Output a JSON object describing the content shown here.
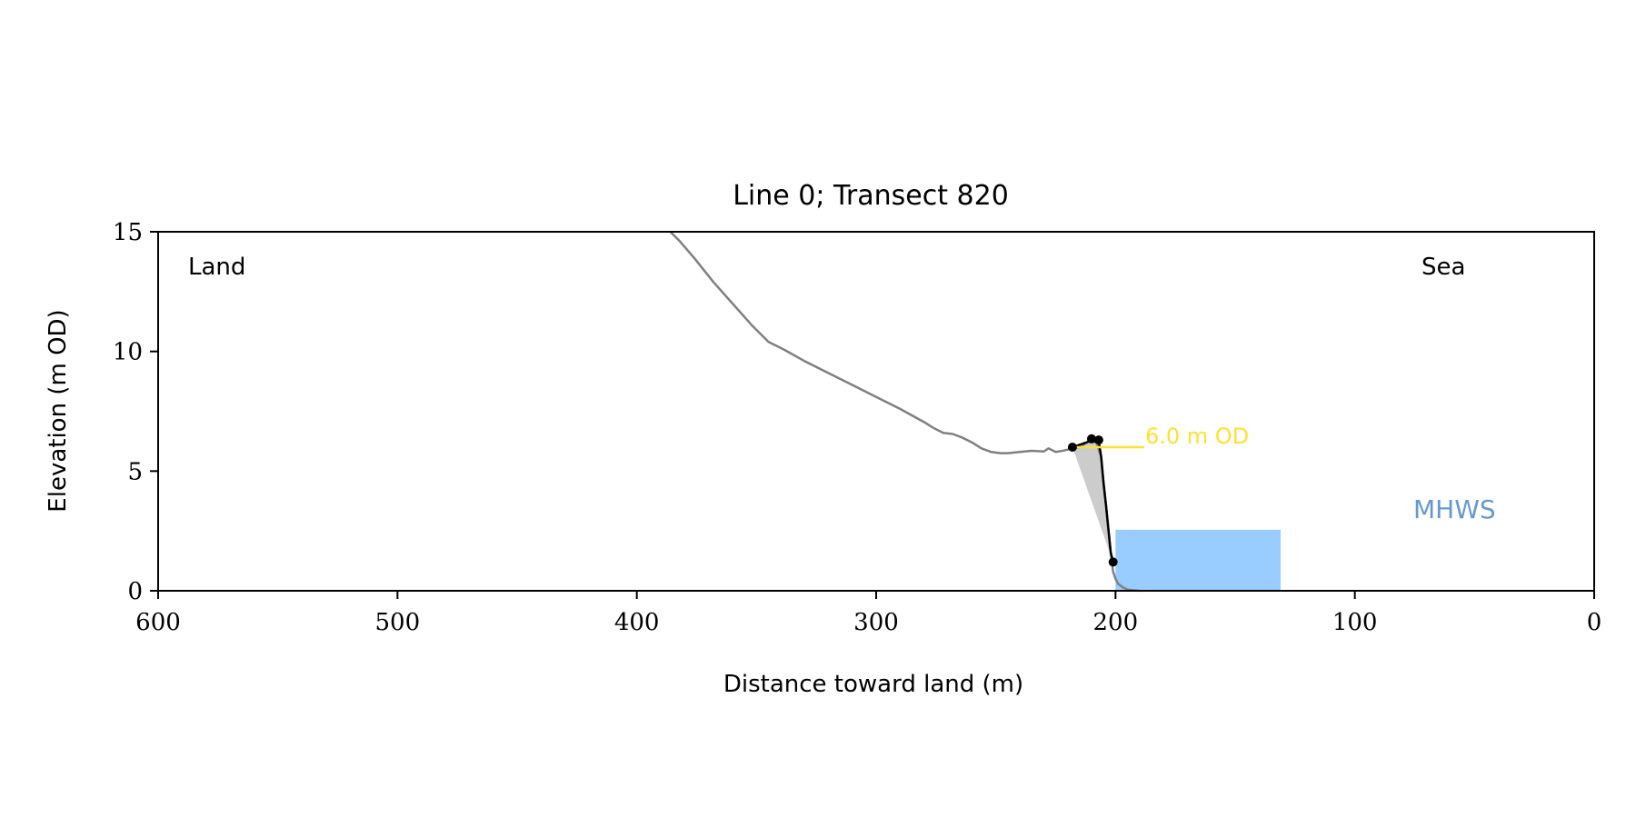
{
  "chart_data": {
    "type": "line",
    "title": "Line 0; Transect 820",
    "xlabel": "Distance toward land (m)",
    "ylabel": "Elevation (m OD)",
    "xlim": [
      600,
      0
    ],
    "ylim": [
      0,
      15
    ],
    "x_ticks": [
      600,
      500,
      400,
      300,
      200,
      100,
      0
    ],
    "y_ticks": [
      0,
      5,
      10,
      15
    ],
    "grid": false,
    "annotations": {
      "land": "Land",
      "sea": "Sea",
      "mhws": "MHWS",
      "od_level": "6.0 m OD"
    },
    "colors": {
      "profile": "#808080",
      "feature": "#000000",
      "shade": "#cccccc",
      "mhws_fill": "#99ccff",
      "mhws_text": "#6699cc",
      "od_line": "#ffe033"
    },
    "series": [
      {
        "x": [
          386,
          382,
          376,
          368,
          360,
          352,
          345,
          341,
          338,
          330,
          320,
          310,
          300,
          290,
          280,
          276,
          272,
          268,
          264,
          260,
          256,
          252,
          248,
          245,
          240,
          235,
          230,
          228,
          225,
          222,
          218,
          215,
          212,
          210,
          208,
          206,
          205,
          204,
          203,
          202,
          201,
          200,
          199,
          197,
          195,
          190
        ],
        "y": [
          15.0,
          14.6,
          13.9,
          12.9,
          12.0,
          11.1,
          10.4,
          10.2,
          10.05,
          9.6,
          9.1,
          8.6,
          8.1,
          7.6,
          7.05,
          6.8,
          6.6,
          6.55,
          6.4,
          6.2,
          5.95,
          5.8,
          5.75,
          5.75,
          5.8,
          5.85,
          5.82,
          5.95,
          5.8,
          5.85,
          5.95,
          6.0,
          6.2,
          6.25,
          6.2,
          5.6,
          4.5,
          3.6,
          2.6,
          1.6,
          0.8,
          0.5,
          0.3,
          0.15,
          0.05,
          0.0
        ]
      },
      {
        "x": [
          218,
          212,
          210,
          208,
          207,
          206,
          205,
          204,
          203,
          202,
          201
        ],
        "y": [
          6.0,
          6.2,
          6.35,
          6.35,
          6.25,
          5.6,
          4.5,
          3.6,
          2.6,
          1.6,
          1.2
        ]
      }
    ],
    "points": [
      {
        "x": 218,
        "y": 6.0
      },
      {
        "x": 210,
        "y": 6.35
      },
      {
        "x": 207,
        "y": 6.3
      },
      {
        "x": 201,
        "y": 1.2
      }
    ],
    "shaded_polygon": {
      "x": [
        218,
        212,
        210,
        208,
        207,
        206,
        205,
        204,
        203,
        202,
        201
      ],
      "y": [
        6.0,
        6.2,
        6.35,
        6.35,
        6.25,
        5.6,
        4.5,
        3.6,
        2.6,
        1.6,
        1.2
      ]
    },
    "mhws_band": {
      "x_from": 200,
      "x_to": 131,
      "y_from": 0,
      "y_to": 2.55
    },
    "od_line": {
      "x_from": 218,
      "x_to": 188,
      "y": 6.0
    }
  }
}
